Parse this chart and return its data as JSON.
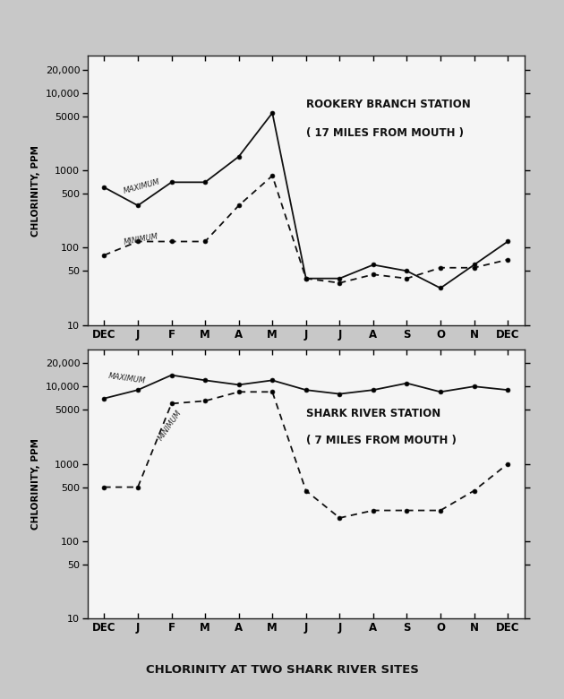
{
  "x_labels": [
    "DEC",
    "J",
    "F",
    "M",
    "A",
    "M",
    "J",
    "J",
    "A",
    "S",
    "O",
    "N",
    "DEC"
  ],
  "top_max": [
    600,
    350,
    700,
    700,
    1500,
    5500,
    40,
    40,
    60,
    50,
    30,
    60,
    120
  ],
  "top_min": [
    80,
    120,
    120,
    120,
    350,
    850,
    40,
    35,
    45,
    40,
    55,
    55,
    70
  ],
  "bot_max": [
    7000,
    9000,
    14000,
    12000,
    10500,
    12000,
    9000,
    8000,
    9000,
    11000,
    8500,
    10000,
    9000
  ],
  "bot_min": [
    500,
    500,
    6000,
    6500,
    8500,
    8500,
    450,
    200,
    250,
    250,
    250,
    450,
    1000
  ],
  "top_title_line1": "ROOKERY BRANCH STATION",
  "top_title_line2": "( 17 MILES FROM MOUTH )",
  "bot_title_line1": "SHARK RIVER STATION",
  "bot_title_line2": "( 7 MILES FROM MOUTH )",
  "ylabel": "CHLORINITY, PPM",
  "main_title": "CHLORINITY AT TWO SHARK RIVER SITES",
  "bg_color": "#c8c8c8",
  "plot_bg": "#f5f5f5",
  "line_color": "#111111",
  "yticks": [
    10,
    50,
    100,
    500,
    1000,
    5000,
    10000,
    20000
  ],
  "ylim": [
    10,
    30000
  ]
}
